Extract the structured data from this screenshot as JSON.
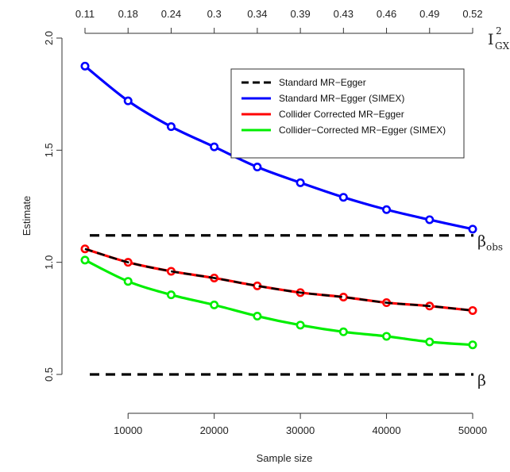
{
  "chart_data": {
    "type": "line",
    "xlabel": "Sample size",
    "ylabel": "Estimate",
    "xlim": [
      5000,
      50000
    ],
    "ylim": [
      0.5,
      2.0
    ],
    "x": [
      5000,
      10000,
      15000,
      20000,
      25000,
      30000,
      35000,
      40000,
      45000,
      50000
    ],
    "x_ticks": [
      10000,
      20000,
      30000,
      40000,
      50000
    ],
    "x_tick_labels": [
      "10000",
      "20000",
      "30000",
      "40000",
      "50000"
    ],
    "y_ticks": [
      0.5,
      1.0,
      1.5,
      2.0
    ],
    "y_tick_labels": [
      "0.5",
      "1.0",
      "1.5",
      "2.0"
    ],
    "top_axis": {
      "label": "I",
      "label_sup": "2",
      "label_sub": "GX",
      "ticks": [
        5000,
        10000,
        15000,
        20000,
        25000,
        30000,
        35000,
        40000,
        45000,
        50000
      ],
      "tick_labels": [
        "0.11",
        "0.18",
        "0.24",
        "0.3",
        "0.34",
        "0.39",
        "0.43",
        "0.46",
        "0.49",
        "0.52"
      ]
    },
    "reference_lines": [
      {
        "y": 1.12,
        "label": "β",
        "label_sub": "obs",
        "color": "#000000",
        "style": "dashed"
      },
      {
        "y": 0.5,
        "label": "β",
        "label_sub": "",
        "color": "#000000",
        "style": "dashed"
      }
    ],
    "legend": {
      "position": "top-right"
    },
    "series": [
      {
        "name": "Standard MR−Egger",
        "color": "#000000",
        "style": "dashed",
        "markers": false,
        "values": [
          1.06,
          1.0,
          0.96,
          0.93,
          0.895,
          0.865,
          0.845,
          0.82,
          0.805,
          0.785
        ]
      },
      {
        "name": "Standard MR−Egger (SIMEX)",
        "color": "#0000ff",
        "style": "solid",
        "markers": true,
        "values": [
          1.875,
          1.72,
          1.605,
          1.515,
          1.425,
          1.355,
          1.29,
          1.235,
          1.19,
          1.148
        ]
      },
      {
        "name": "Collider Corrected MR−Egger",
        "color": "#ff0000",
        "style": "solid",
        "markers": true,
        "values": [
          1.06,
          1.0,
          0.96,
          0.93,
          0.895,
          0.865,
          0.845,
          0.82,
          0.805,
          0.785
        ]
      },
      {
        "name": "Collider−Corrected MR−Egger (SIMEX)",
        "color": "#00ee00",
        "style": "solid",
        "markers": true,
        "values": [
          1.01,
          0.915,
          0.855,
          0.81,
          0.76,
          0.72,
          0.69,
          0.67,
          0.645,
          0.632
        ]
      }
    ]
  }
}
